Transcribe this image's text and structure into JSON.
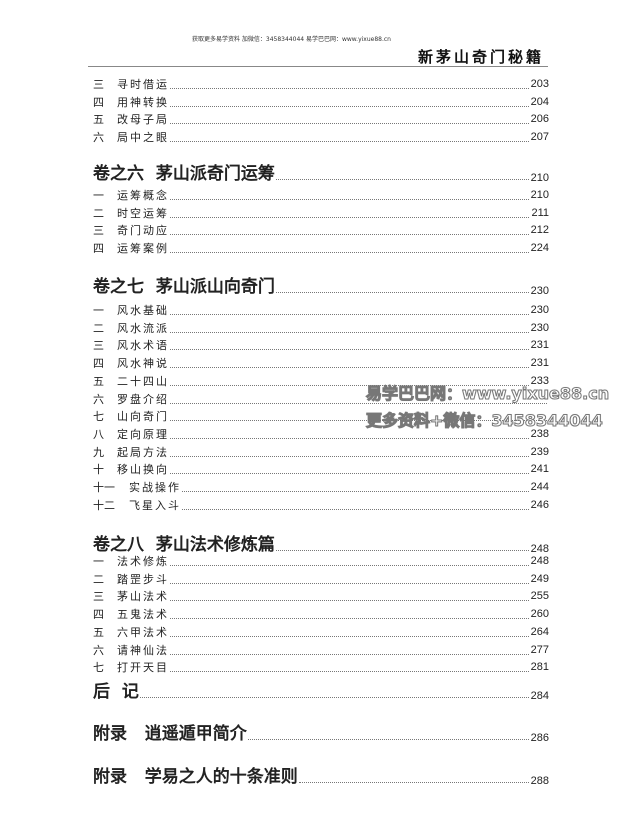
{
  "header": {
    "note": "获取更多易学资料 加微信：3458344044 易学巴巴网：www.yixue88.cn",
    "title": "新茅山奇门秘籍"
  },
  "blocks": [
    {
      "rows": [
        {
          "num": "三",
          "label": "寻时借运",
          "page": "203"
        },
        {
          "num": "四",
          "label": "用神转换",
          "page": "204"
        },
        {
          "num": "五",
          "label": "改母子局",
          "page": "206"
        },
        {
          "num": "六",
          "label": "局中之眼",
          "page": "207"
        }
      ]
    },
    {
      "title": "卷之六  茅山派奇门运筹",
      "page": "210",
      "rows": [
        {
          "num": "一",
          "label": "运筹概念",
          "page": "210"
        },
        {
          "num": "二",
          "label": "时空运筹",
          "page": "211"
        },
        {
          "num": "三",
          "label": "奇门动应",
          "page": "212"
        },
        {
          "num": "四",
          "label": "运筹案例",
          "page": "224"
        }
      ]
    },
    {
      "title": "卷之七  茅山派山向奇门",
      "page": "230",
      "rows": [
        {
          "num": "一",
          "label": "风水基础",
          "page": "230"
        },
        {
          "num": "二",
          "label": "风水流派",
          "page": "230"
        },
        {
          "num": "三",
          "label": "风水术语",
          "page": "231"
        },
        {
          "num": "四",
          "label": "风水神说",
          "page": "231"
        },
        {
          "num": "五",
          "label": "二十四山",
          "page": "233"
        },
        {
          "num": "六",
          "label": "罗盘介绍",
          "page": ""
        },
        {
          "num": "七",
          "label": "山向奇门",
          "page": ""
        },
        {
          "num": "八",
          "label": "定向原理",
          "page": "238"
        },
        {
          "num": "九",
          "label": "起局方法",
          "page": "239"
        },
        {
          "num": "十",
          "label": "移山换向",
          "page": "241"
        },
        {
          "num": "十一",
          "label": "实战操作",
          "page": "244"
        },
        {
          "num": "十二",
          "label": "飞星入斗",
          "page": "246"
        }
      ]
    },
    {
      "title": "卷之八  茅山法术修炼篇",
      "page": "248",
      "rows": [
        {
          "num": "一",
          "label": "法术修炼",
          "page": "248"
        },
        {
          "num": "二",
          "label": "踏罡步斗",
          "page": "249"
        },
        {
          "num": "三",
          "label": "茅山法术",
          "page": "255"
        },
        {
          "num": "四",
          "label": "五鬼法术",
          "page": "260"
        },
        {
          "num": "五",
          "label": "六甲法术",
          "page": "264"
        },
        {
          "num": "六",
          "label": "请神仙法",
          "page": "277"
        },
        {
          "num": "七",
          "label": "打开天目",
          "page": "281"
        }
      ]
    }
  ],
  "tail": [
    {
      "title": "后  记",
      "page": "284"
    },
    {
      "title": "附录   逍遥遁甲简介",
      "page": "286"
    },
    {
      "title": "附录   学易之人的十条准则",
      "page": "288"
    }
  ],
  "watermark": {
    "line1": "易学巴巴网：www.yixue88.cn",
    "line2": "更多资料+微信：3458344044"
  }
}
